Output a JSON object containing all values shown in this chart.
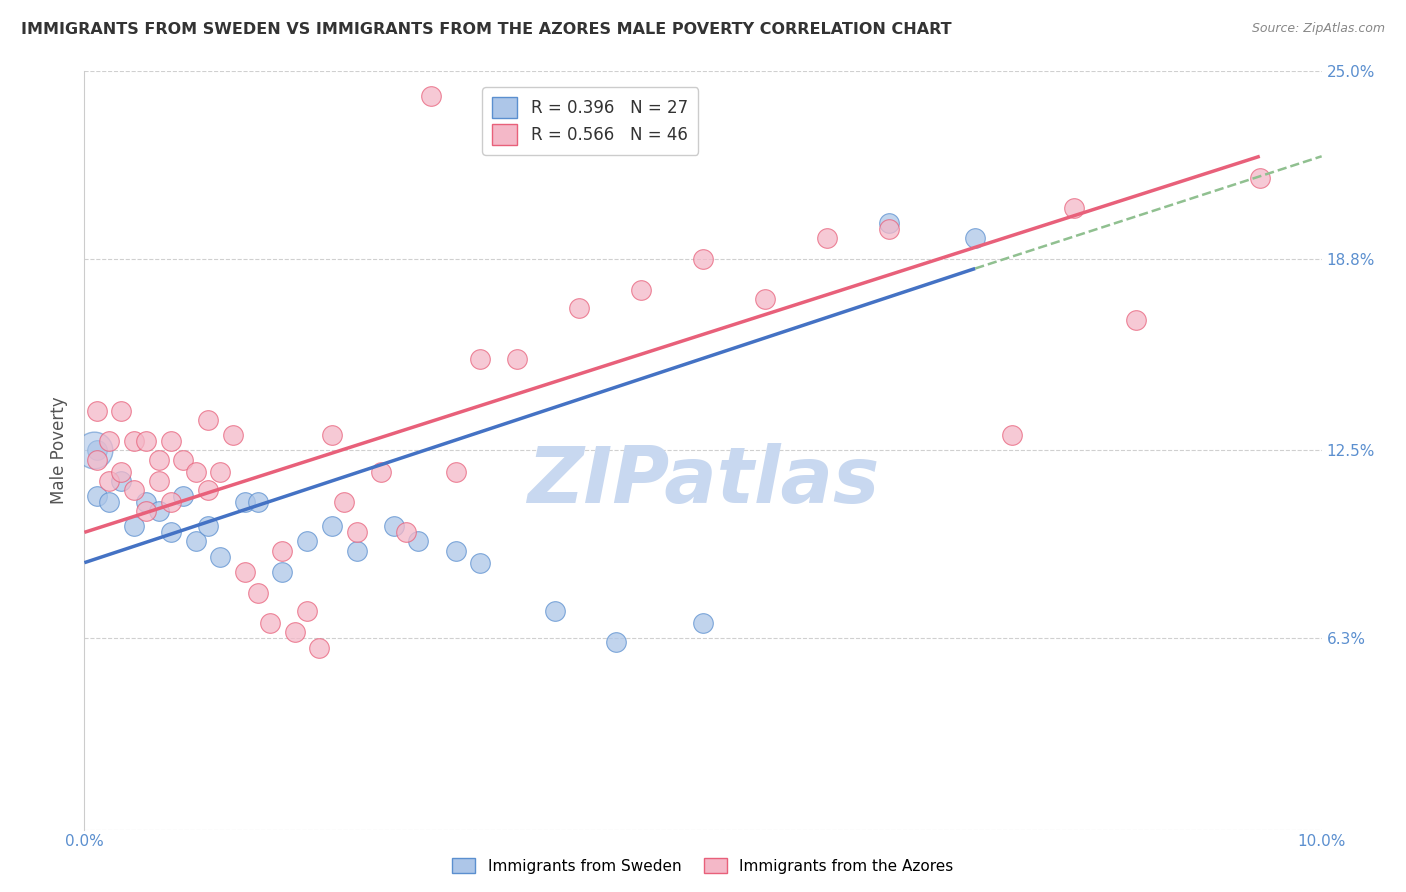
{
  "title": "IMMIGRANTS FROM SWEDEN VS IMMIGRANTS FROM THE AZORES MALE POVERTY CORRELATION CHART",
  "source": "Source: ZipAtlas.com",
  "xlabel_blue": "Immigrants from Sweden",
  "xlabel_pink": "Immigrants from the Azores",
  "ylabel": "Male Poverty",
  "xlim": [
    0.0,
    0.1
  ],
  "ylim": [
    0.0,
    0.25
  ],
  "xticks": [
    0.0,
    0.02,
    0.04,
    0.06,
    0.08,
    0.1
  ],
  "yticks": [
    0.0,
    0.063,
    0.125,
    0.188,
    0.25
  ],
  "ytick_labels_right": [
    "",
    "6.3%",
    "12.5%",
    "18.8%",
    "25.0%"
  ],
  "xtick_labels": [
    "0.0%",
    "",
    "",
    "",
    "",
    "10.0%"
  ],
  "legend_blue_R": "R = 0.396",
  "legend_blue_N": "N = 27",
  "legend_pink_R": "R = 0.566",
  "legend_pink_N": "N = 46",
  "blue_color": "#adc6e8",
  "pink_color": "#f4b8c8",
  "blue_edge_color": "#5b8fcf",
  "pink_edge_color": "#e8607a",
  "blue_line_color": "#4472c4",
  "pink_line_color": "#e8607a",
  "dash_color": "#90c090",
  "watermark": "ZIPatlas",
  "watermark_color": "#c8d8f0",
  "grid_color": "#d0d0d0",
  "title_color": "#333333",
  "tick_color": "#5b8fcf",
  "sweden_x": [
    0.001,
    0.001,
    0.002,
    0.003,
    0.004,
    0.005,
    0.006,
    0.007,
    0.008,
    0.009,
    0.01,
    0.011,
    0.013,
    0.014,
    0.016,
    0.018,
    0.02,
    0.022,
    0.025,
    0.027,
    0.03,
    0.032,
    0.038,
    0.043,
    0.05,
    0.065,
    0.072
  ],
  "sweden_y": [
    0.125,
    0.11,
    0.108,
    0.115,
    0.1,
    0.108,
    0.105,
    0.098,
    0.11,
    0.095,
    0.1,
    0.09,
    0.108,
    0.108,
    0.085,
    0.095,
    0.1,
    0.092,
    0.1,
    0.095,
    0.092,
    0.088,
    0.072,
    0.062,
    0.068,
    0.2,
    0.195
  ],
  "azores_x": [
    0.001,
    0.001,
    0.002,
    0.002,
    0.003,
    0.003,
    0.004,
    0.004,
    0.005,
    0.005,
    0.006,
    0.006,
    0.007,
    0.007,
    0.008,
    0.009,
    0.01,
    0.01,
    0.011,
    0.012,
    0.013,
    0.014,
    0.015,
    0.016,
    0.017,
    0.018,
    0.019,
    0.02,
    0.021,
    0.022,
    0.024,
    0.026,
    0.028,
    0.03,
    0.032,
    0.035,
    0.04,
    0.045,
    0.05,
    0.055,
    0.06,
    0.065,
    0.075,
    0.08,
    0.085,
    0.095
  ],
  "azores_y": [
    0.138,
    0.122,
    0.128,
    0.115,
    0.138,
    0.118,
    0.128,
    0.112,
    0.128,
    0.105,
    0.122,
    0.115,
    0.128,
    0.108,
    0.122,
    0.118,
    0.135,
    0.112,
    0.118,
    0.13,
    0.085,
    0.078,
    0.068,
    0.092,
    0.065,
    0.072,
    0.06,
    0.13,
    0.108,
    0.098,
    0.118,
    0.098,
    0.242,
    0.118,
    0.155,
    0.155,
    0.172,
    0.178,
    0.188,
    0.175,
    0.195,
    0.198,
    0.13,
    0.205,
    0.168,
    0.215
  ],
  "blue_line_x0": 0.0,
  "blue_line_y0": 0.088,
  "blue_line_x1": 0.072,
  "blue_line_y1": 0.185,
  "pink_line_x0": 0.0,
  "pink_line_y0": 0.098,
  "pink_line_x1": 0.095,
  "pink_line_y1": 0.222,
  "dash_line_x0": 0.072,
  "dash_line_y0": 0.185,
  "dash_line_x1": 0.1,
  "dash_line_y1": 0.222
}
